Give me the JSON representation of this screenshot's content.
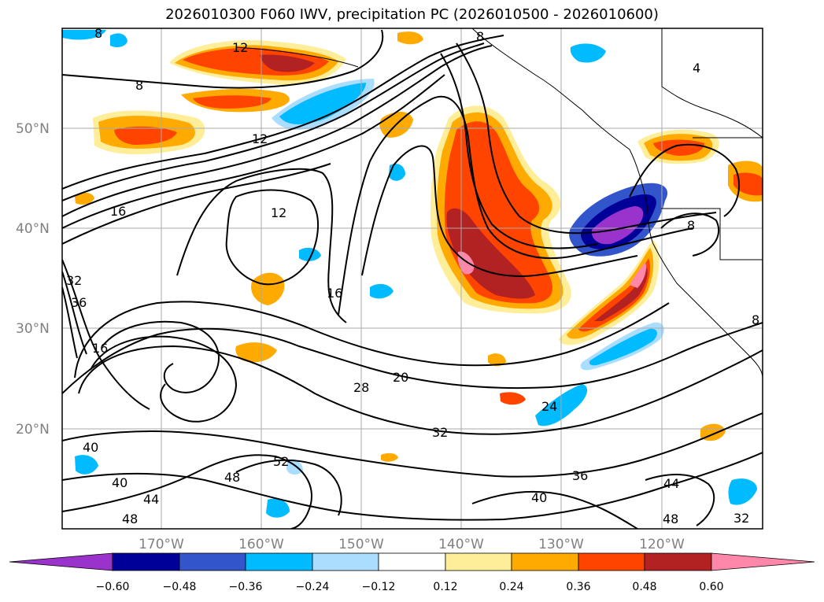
{
  "title": "2026010300 F060 IWV, precipitation PC (2026010500 - 2026010600)",
  "latitude_labels": [
    "50°N",
    "40°N",
    "30°N",
    "20°N"
  ],
  "longitude_labels": [
    "170°W",
    "160°W",
    "150°W",
    "140°W",
    "130°W",
    "120°W"
  ],
  "contour_labels": [
    "12",
    "8",
    "8",
    "8",
    "12",
    "16",
    "12",
    "16",
    "32",
    "36",
    "16",
    "20",
    "28",
    "24",
    "32",
    "40",
    "52",
    "48",
    "40",
    "44",
    "48",
    "36",
    "40",
    "44",
    "48",
    "32",
    "4",
    "8",
    "8"
  ],
  "colorbar": {
    "tick_labels": [
      "−0.60",
      "−0.48",
      "−0.36",
      "−0.24",
      "−0.12",
      "0.12",
      "0.24",
      "0.36",
      "0.48",
      "0.60"
    ],
    "colors": [
      "#9933cc",
      "#000099",
      "#3355cc",
      "#00bbff",
      "#aaddff",
      "#ffffff",
      "#ffee99",
      "#ffaa00",
      "#ff4400",
      "#b22222",
      "#ff88aa"
    ]
  },
  "colors": {
    "contour": "#000000",
    "coastline": "#000000",
    "grid": "#aaaaaa",
    "axis_label": "#808080"
  }
}
